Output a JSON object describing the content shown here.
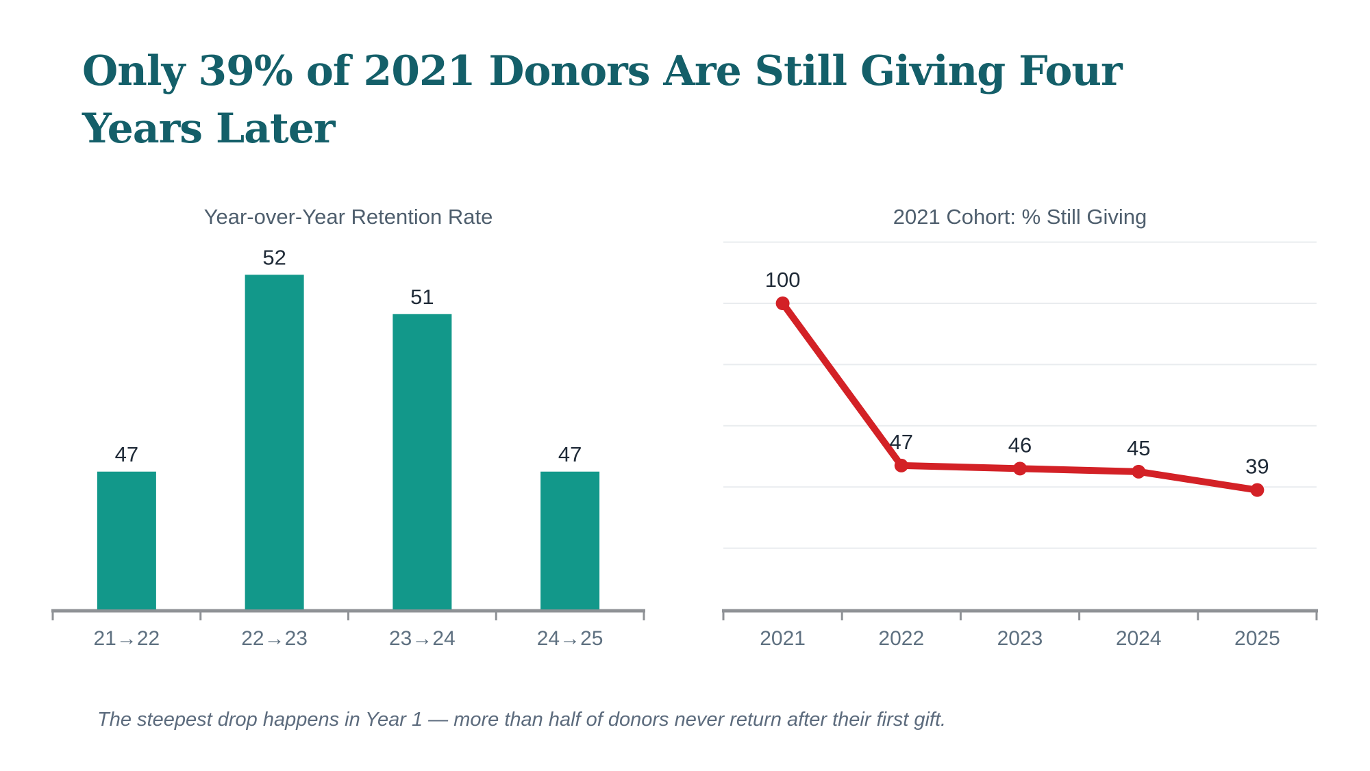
{
  "page": {
    "title_lines": [
      "Only 39% of 2021 Donors Are Still Giving Four",
      "Years Later"
    ],
    "footnote": "The steepest drop happens in Year 1 — more than half of donors never return after their first gift."
  },
  "colors": {
    "background": "#ffffff",
    "title": "#145f69",
    "chart_title": "#4e5e6d",
    "bar_fill": "#12988a",
    "line_stroke": "#d32126",
    "marker_fill": "#d32126",
    "value_label": "#1f2a37",
    "axis_line": "#8f9296",
    "tick_label": "#5e7080",
    "gridline": "#e9ecef",
    "footnote": "#5c6b7d"
  },
  "chart_data": [
    {
      "type": "bar",
      "title": "Year-over-Year Retention Rate",
      "categories": [
        "21→22",
        "22→23",
        "23→24",
        "24→25"
      ],
      "values": [
        47,
        52,
        51,
        47
      ],
      "ylim": [
        43.5,
        54
      ],
      "grid": false,
      "data_labels": true,
      "legend": false
    },
    {
      "type": "line",
      "title": "2021 Cohort: % Still Giving",
      "categories": [
        "2021",
        "2022",
        "2023",
        "2024",
        "2025"
      ],
      "values": [
        100,
        47,
        46,
        45,
        39
      ],
      "ylim": [
        0,
        120
      ],
      "grid": true,
      "gridline_values": [
        20,
        40,
        60,
        80,
        100,
        120
      ],
      "data_labels": true,
      "legend": false
    }
  ]
}
